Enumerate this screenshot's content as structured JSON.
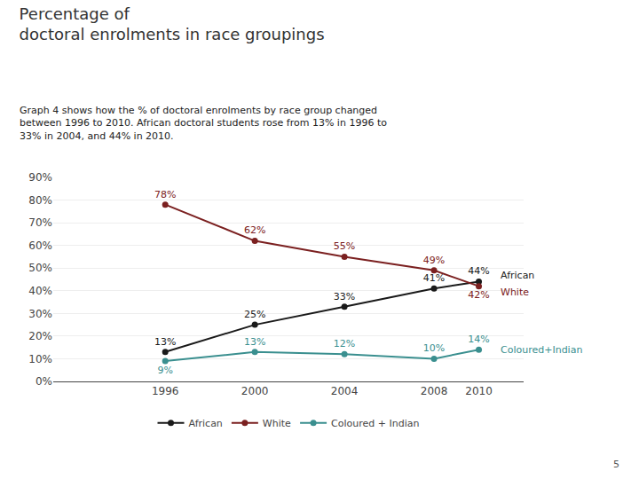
{
  "chart_data": {
    "type": "line",
    "title": "Percentage of\ndoctoral enrolments in race groupings",
    "subtitle": "Graph 4 shows how the % of doctoral enrolments by race group changed\nbetween 1996 to 2010. African doctoral students rose from 13% in 1996 to\n33% in 2004, and 44% in 2010.",
    "x": [
      1996,
      2000,
      2004,
      2008,
      2010
    ],
    "series": [
      {
        "name": "African",
        "color": "#1a1a1a",
        "marker": "circle",
        "values": [
          13,
          25,
          33,
          41,
          44
        ],
        "value_labels": [
          "13%",
          "25%",
          "33%",
          "41%",
          "44%"
        ]
      },
      {
        "name": "White",
        "color": "#7b2020",
        "marker": "circle",
        "values": [
          78,
          62,
          55,
          49,
          42
        ],
        "value_labels": [
          "78%",
          "62%",
          "55%",
          "49%",
          "42%"
        ]
      },
      {
        "name": "Coloured + Indian",
        "color": "#3a8f8f",
        "marker": "circle",
        "values": [
          9,
          13,
          12,
          10,
          14
        ],
        "value_labels": [
          "9%",
          "13%",
          "12%",
          "10%",
          "14%"
        ]
      }
    ],
    "xlim": [
      1991,
      2012
    ],
    "xticks": [
      1996,
      2000,
      2004,
      2008,
      2010
    ],
    "ylim": [
      0,
      90
    ],
    "yticks": [
      {
        "value": 0,
        "label": "0%"
      },
      {
        "value": 10,
        "label": "10%"
      },
      {
        "value": 20,
        "label": "20%"
      },
      {
        "value": 30,
        "label": "30%"
      },
      {
        "value": 40,
        "label": "40%"
      },
      {
        "value": 50,
        "label": "50%"
      },
      {
        "value": 60,
        "label": "60%"
      },
      {
        "value": 70,
        "label": "70%"
      },
      {
        "value": 80,
        "label": "80%"
      },
      {
        "value": 90,
        "label": "90%"
      }
    ],
    "grid": true,
    "legend": "bottom",
    "data_labels": true,
    "annotations": [
      {
        "text": "African",
        "x": 2010,
        "y": 44,
        "color": "#1a1a1a"
      },
      {
        "text": "White",
        "x": 2010,
        "y": 42,
        "color": "#7b2020"
      },
      {
        "text": "Coloured+Indian",
        "x": 2010,
        "y": 14,
        "color": "#3a8f8f"
      },
      {
        "text": "5"
      }
    ]
  }
}
